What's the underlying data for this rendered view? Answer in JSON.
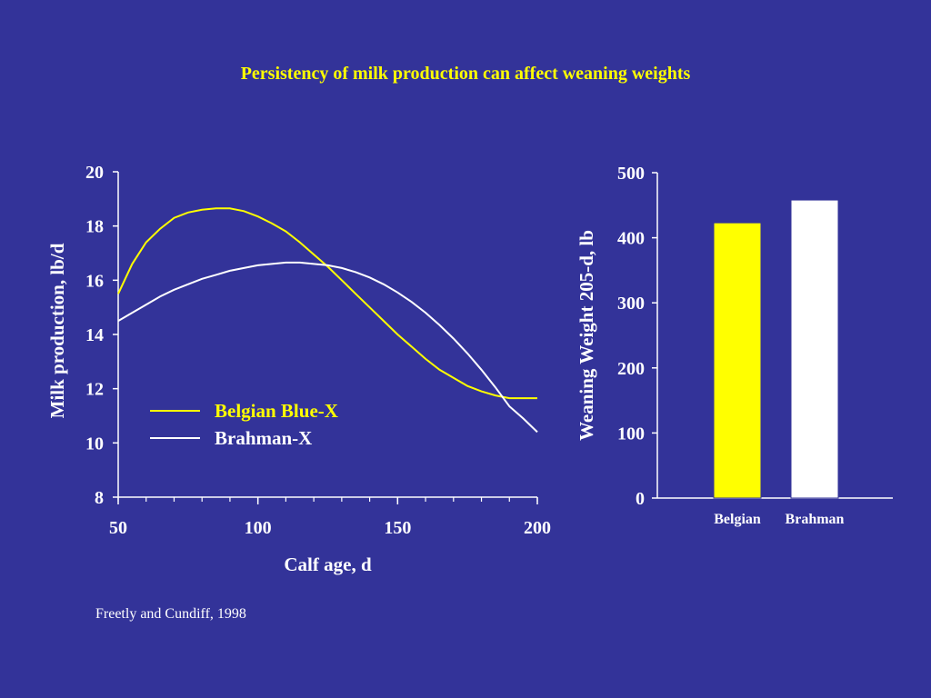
{
  "title": "Persistency of milk production can affect weaning weights",
  "citation": "Freetly and Cundiff, 1998",
  "colors": {
    "background": "#333399",
    "title": "#ffff00",
    "belgian": "#ffff00",
    "brahman": "#ffffff"
  },
  "chart_data": [
    {
      "type": "line",
      "xlabel": "Calf age, d",
      "ylabel": "Milk production, lb/d",
      "xlim": [
        50,
        200
      ],
      "ylim": [
        8,
        20
      ],
      "xticks": [
        50,
        100,
        150,
        200
      ],
      "yticks": [
        8,
        10,
        12,
        14,
        16,
        18,
        20
      ],
      "legend_position": "lower-left",
      "grid": false,
      "series": [
        {
          "name": "Belgian Blue-X",
          "color": "#ffff00",
          "x": [
            50,
            55,
            60,
            65,
            70,
            75,
            80,
            85,
            90,
            95,
            100,
            105,
            110,
            115,
            120,
            125,
            130,
            135,
            140,
            145,
            150,
            155,
            160,
            165,
            170,
            175,
            180,
            185,
            190,
            195,
            200
          ],
          "y": [
            15.5,
            16.6,
            17.4,
            17.9,
            18.3,
            18.5,
            18.6,
            18.65,
            18.65,
            18.55,
            18.35,
            18.1,
            17.8,
            17.4,
            16.95,
            16.5,
            16.0,
            15.5,
            15.0,
            14.5,
            14.0,
            13.55,
            13.1,
            12.7,
            12.4,
            12.1,
            11.9,
            11.75,
            11.65,
            11.65,
            11.65
          ]
        },
        {
          "name": "Brahman-X",
          "color": "#ffffff",
          "x": [
            50,
            55,
            60,
            65,
            70,
            75,
            80,
            85,
            90,
            95,
            100,
            105,
            110,
            115,
            120,
            125,
            130,
            135,
            140,
            145,
            150,
            155,
            160,
            165,
            170,
            175,
            180,
            185,
            190,
            195,
            200
          ],
          "y": [
            14.5,
            14.8,
            15.1,
            15.4,
            15.65,
            15.85,
            16.05,
            16.2,
            16.35,
            16.45,
            16.55,
            16.6,
            16.65,
            16.65,
            16.6,
            16.55,
            16.45,
            16.3,
            16.1,
            15.85,
            15.55,
            15.2,
            14.8,
            14.35,
            13.85,
            13.3,
            12.7,
            12.05,
            11.35,
            10.9,
            10.4
          ]
        }
      ]
    },
    {
      "type": "bar",
      "ylabel": "Weaning Weight 205-d, lb",
      "ylim": [
        0,
        500
      ],
      "yticks": [
        0,
        100,
        200,
        300,
        400,
        500
      ],
      "categories": [
        "Belgian",
        "Brahman"
      ],
      "values": [
        423,
        458
      ],
      "colors": [
        "#ffff00",
        "#ffffff"
      ]
    }
  ]
}
